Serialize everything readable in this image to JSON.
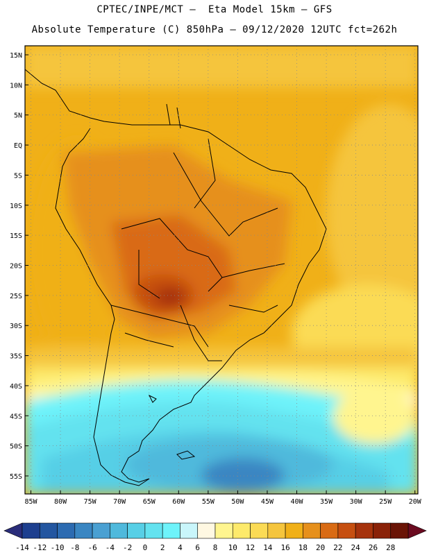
{
  "header": {
    "line1": "CPTEC/INPE/MCT –  Eta Model 15km – GFS",
    "line2": "Absolute Temperature (C) 850hPa – 09/12/2020 12UTC fct=262h"
  },
  "map": {
    "lat_labels": [
      "15N",
      "10N",
      "5N",
      "EQ",
      "5S",
      "10S",
      "15S",
      "20S",
      "25S",
      "30S",
      "35S",
      "40S",
      "45S",
      "50S",
      "55S"
    ],
    "lat_values": [
      15,
      10,
      5,
      0,
      -5,
      -10,
      -15,
      -20,
      -25,
      -30,
      -35,
      -40,
      -45,
      -50,
      -55
    ],
    "lon_labels": [
      "85W",
      "80W",
      "75W",
      "70W",
      "65W",
      "60W",
      "55W",
      "50W",
      "45W",
      "40W",
      "35W",
      "30W",
      "25W",
      "20W"
    ],
    "lon_values": [
      -85,
      -80,
      -75,
      -70,
      -65,
      -60,
      -55,
      -50,
      -45,
      -40,
      -35,
      -30,
      -25,
      -20
    ],
    "lat_range": [
      -58,
      16.5
    ],
    "lon_range": [
      -86,
      -19.5
    ]
  },
  "colorbar": {
    "labels": [
      "-14",
      "-12",
      "-10",
      "-8",
      "-6",
      "-4",
      "-2",
      "0",
      "2",
      "4",
      "6",
      "8",
      "10",
      "12",
      "14",
      "16",
      "18",
      "20",
      "22",
      "24",
      "26",
      "28"
    ],
    "colors": [
      "#1d3f8f",
      "#2356a0",
      "#2c6bb1",
      "#3a86c2",
      "#4aa0d2",
      "#4fb9dc",
      "#57cfe6",
      "#63e2ef",
      "#6ef3fa",
      "#c9f6fb",
      "#fff8e2",
      "#fff58f",
      "#fdea6b",
      "#fbdb55",
      "#f5c53d",
      "#f0b018",
      "#e6901c",
      "#d96b14",
      "#c64f10",
      "#a6330c",
      "#8a2208",
      "#6a1406"
    ],
    "left_arrow_color": "#2a2d7a",
    "right_arrow_color": "#6b0a20"
  }
}
